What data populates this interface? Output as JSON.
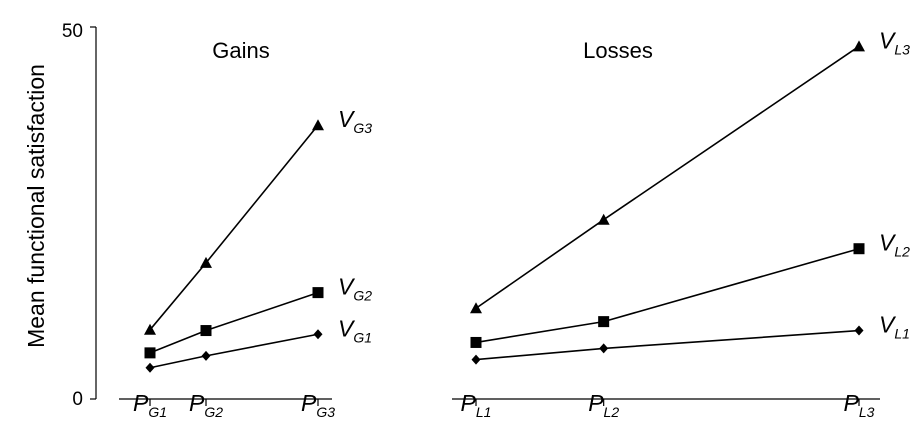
{
  "chart_data": {
    "type": "line",
    "ylabel": "Mean functional satisfaction",
    "ylim": [
      0,
      50
    ],
    "yticks": [
      "0",
      "50"
    ],
    "grid": false,
    "legend": "none",
    "panels": [
      {
        "title": "Gains",
        "x": [
          1,
          2,
          4
        ],
        "xticks": [
          {
            "main": "P",
            "sub": "G1"
          },
          {
            "main": "P",
            "sub": "G2"
          },
          {
            "main": "P",
            "sub": "G3"
          }
        ],
        "series": [
          {
            "label": {
              "main": "V",
              "sub": "G1"
            },
            "marker": "diamond",
            "values": [
              4.2,
              5.8,
              8.7
            ]
          },
          {
            "label": {
              "main": "V",
              "sub": "G2"
            },
            "marker": "square",
            "values": [
              6.2,
              9.2,
              14.3
            ]
          },
          {
            "label": {
              "main": "V",
              "sub": "G3"
            },
            "marker": "triangle",
            "values": [
              9.3,
              18.3,
              36.8
            ]
          }
        ]
      },
      {
        "title": "Losses",
        "x": [
          1,
          2,
          4
        ],
        "xticks": [
          {
            "main": "P",
            "sub": "L1"
          },
          {
            "main": "P",
            "sub": "L2"
          },
          {
            "main": "P",
            "sub": "L3"
          }
        ],
        "series": [
          {
            "label": {
              "main": "V",
              "sub": "L1"
            },
            "marker": "diamond",
            "values": [
              5.3,
              6.8,
              9.2
            ]
          },
          {
            "label": {
              "main": "V",
              "sub": "L2"
            },
            "marker": "square",
            "values": [
              7.6,
              10.4,
              20.2
            ]
          },
          {
            "label": {
              "main": "V",
              "sub": "L3"
            },
            "marker": "triangle",
            "values": [
              12.2,
              24.1,
              47.4
            ]
          }
        ]
      }
    ]
  }
}
